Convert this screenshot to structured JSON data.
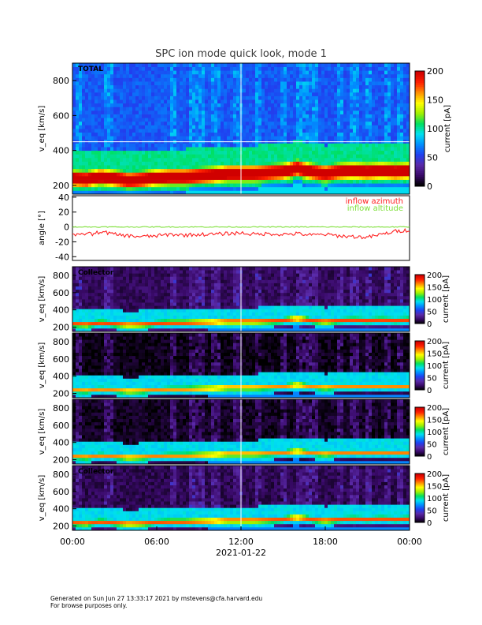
{
  "title": "SPC ion mode quick look, mode 1",
  "footer": {
    "line1": "Generated on Sun Jun 27 13:33:17 2021 by mstevens@cfa.harvard.edu",
    "line2": "For browse purposes only."
  },
  "colors": {
    "azimuth": "#ff2020",
    "altitude": "#7fe03a",
    "colormap": [
      "#000000",
      "#3a0a6a",
      "#5a2aa8",
      "#2040f0",
      "#0090ff",
      "#00e0f0",
      "#00e060",
      "#a0f000",
      "#ffff00",
      "#ff9000",
      "#ff2000",
      "#d00000"
    ]
  },
  "chart_data": [
    {
      "type": "heatmap",
      "panel_label": "TOTAL",
      "ylabel": "v_eq [km/s]",
      "yticks": [
        200,
        400,
        600,
        800
      ],
      "ylim": [
        150,
        900
      ],
      "xlim": [
        "00:00",
        "24:00"
      ],
      "colorbar": {
        "label": "current [pA]",
        "ticks": [
          0,
          50,
          100,
          150,
          200
        ],
        "range": [
          0,
          200
        ]
      },
      "background_level": 0.3
    },
    {
      "type": "line",
      "ylabel": "angle [°]",
      "yticks": [
        -40,
        -20,
        0,
        20,
        40
      ],
      "ylim": [
        -45,
        42
      ],
      "legend": [
        "inflow azimuth",
        "inflow altitude"
      ],
      "legend_position": "top-right",
      "x_hours": [
        0,
        0.5,
        1,
        1.5,
        2,
        2.5,
        3,
        4,
        5,
        6,
        7,
        8,
        9,
        10,
        11,
        12,
        13,
        14,
        15,
        16,
        17,
        18,
        19,
        20,
        21,
        22,
        23,
        24
      ],
      "series": [
        {
          "name": "inflow azimuth",
          "values": [
            -10,
            -12,
            -8,
            -10,
            -6,
            -8,
            -10,
            -12,
            -13,
            -12,
            -10,
            -11,
            -10,
            -10,
            -9,
            -8,
            -10,
            -9,
            -10,
            -9,
            -11,
            -10,
            -12,
            -13,
            -14,
            -10,
            -6,
            -4
          ]
        },
        {
          "name": "inflow altitude",
          "values": [
            0,
            0,
            0,
            0,
            0,
            0,
            0,
            0,
            0,
            0,
            0,
            0,
            0,
            0,
            0,
            0,
            0,
            0,
            0,
            0,
            0,
            0,
            0,
            0,
            0,
            0,
            0,
            0
          ]
        }
      ]
    },
    {
      "type": "heatmap",
      "panel_label": "Collector",
      "ylabel": "v_eq [km/s]",
      "yticks": [
        200,
        400,
        600,
        800
      ],
      "ylim": [
        150,
        900
      ],
      "colorbar": {
        "label": "current [pA]",
        "ticks": [
          0,
          50,
          100,
          150,
          200
        ],
        "range": [
          0,
          200
        ]
      },
      "background_level": 0.08
    },
    {
      "type": "heatmap",
      "panel_label": "",
      "ylabel": "v_eq [km/s]",
      "yticks": [
        200,
        400,
        600,
        800
      ],
      "ylim": [
        150,
        900
      ],
      "colorbar": {
        "label": "current [pA]",
        "ticks": [
          0,
          50,
          100,
          150,
          200
        ],
        "range": [
          0,
          200
        ]
      },
      "background_level": 0.02
    },
    {
      "type": "heatmap",
      "panel_label": "",
      "ylabel": "v_eq [km/s]",
      "yticks": [
        200,
        400,
        600,
        800
      ],
      "ylim": [
        150,
        900
      ],
      "colorbar": {
        "label": "current [pA]",
        "ticks": [
          0,
          50,
          100,
          150,
          200
        ],
        "range": [
          0,
          200
        ]
      },
      "background_level": 0.03
    },
    {
      "type": "heatmap",
      "panel_label": "Collector",
      "ylabel": "v_eq [km/s]",
      "yticks": [
        200,
        400,
        600,
        800
      ],
      "ylim": [
        150,
        900
      ],
      "colorbar": {
        "label": "current [pA]",
        "ticks": [
          0,
          50,
          100,
          150,
          200
        ],
        "range": [
          0,
          200
        ]
      },
      "background_level": 0.07
    }
  ],
  "xaxis": {
    "ticks": [
      "00:00",
      "06:00",
      "12:00",
      "18:00",
      "00:00"
    ],
    "date": "2021-01-22"
  },
  "beam_hours": [
    0,
    1,
    2,
    3,
    4,
    5,
    6,
    7,
    8,
    9,
    10,
    11,
    12,
    13,
    14,
    15,
    16,
    17,
    18,
    19,
    20,
    21,
    22,
    23,
    24
  ],
  "beam_kms": [
    240,
    235,
    250,
    240,
    230,
    235,
    245,
    250,
    250,
    255,
    260,
    270,
    270,
    270,
    275,
    280,
    300,
    280,
    270,
    280,
    285,
    280,
    285,
    280,
    285
  ]
}
